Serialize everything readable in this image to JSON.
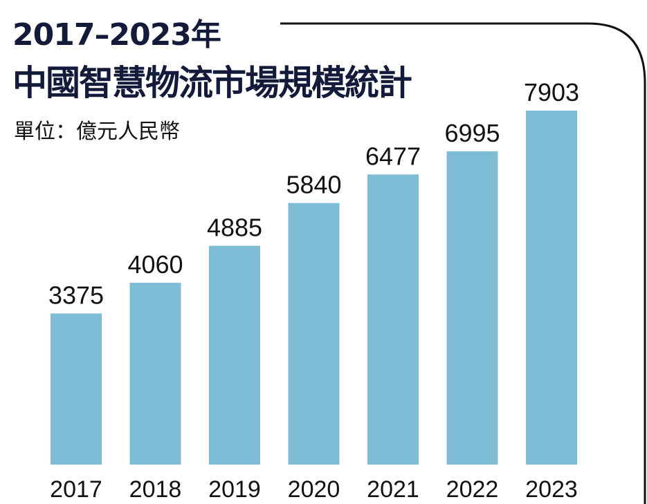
{
  "chart_data": {
    "type": "bar",
    "title_line1": "2017–2023年",
    "title_line2": "中國智慧物流市場規模統計",
    "unit": "單位：億元人民幣",
    "categories": [
      "2017",
      "2018",
      "2019",
      "2020",
      "2021",
      "2022",
      "2023"
    ],
    "values": [
      3375,
      4060,
      4885,
      5840,
      6477,
      6995,
      7903
    ],
    "value_labels": [
      "3375",
      "4060",
      "4885",
      "5840",
      "6477",
      "6995",
      "7903"
    ],
    "xlabel": "",
    "ylabel": "",
    "ylim": [
      0,
      7903
    ],
    "grid": false,
    "bar_color": "#7fbcd6",
    "title_color": "#141a3a"
  }
}
